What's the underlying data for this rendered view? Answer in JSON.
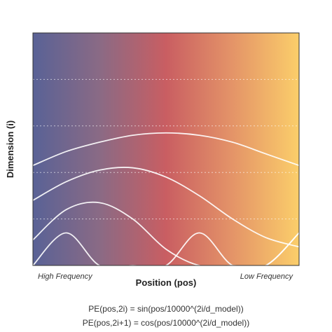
{
  "chart_data": {
    "type": "line",
    "title": "",
    "xlabel": "Position (pos)",
    "ylabel": "Dimension (i)",
    "xlim": [
      0,
      1
    ],
    "ylim": [
      0,
      1
    ],
    "grid": true,
    "background_gradient": [
      "#596296",
      "#8a6a85",
      "#c95e62",
      "#e49468",
      "#fbce6a"
    ],
    "line_color": "#ffffff",
    "annotations": {
      "left": "High Frequency",
      "right": "Low Frequency"
    },
    "series": [
      {
        "x": [
          0,
          0.125,
          0.25,
          0.375,
          0.5,
          0.625,
          0.75,
          0.875,
          1
        ],
        "y": [
          0,
          0.14,
          0.0,
          0,
          0,
          0.14,
          0.0,
          0,
          0.14
        ]
      },
      {
        "x": [
          0,
          0.125,
          0.25,
          0.375,
          0.5,
          0.625,
          0.75,
          0.875,
          1
        ],
        "y": [
          0.11,
          0.24,
          0.27,
          0.2,
          0.07,
          0,
          0,
          0,
          0.14
        ]
      },
      {
        "x": [
          0,
          0.125,
          0.25,
          0.375,
          0.5,
          0.625,
          0.75,
          0.875,
          1
        ],
        "y": [
          0.28,
          0.36,
          0.41,
          0.42,
          0.38,
          0.3,
          0.2,
          0.12,
          0.08
        ]
      },
      {
        "x": [
          0,
          0.125,
          0.25,
          0.375,
          0.5,
          0.625,
          0.75,
          0.875,
          1
        ],
        "y": [
          0.43,
          0.49,
          0.53,
          0.56,
          0.57,
          0.56,
          0.53,
          0.48,
          0.43
        ]
      }
    ]
  },
  "formulas": {
    "even": "PE(pos,2i) = sin(pos/10000^(2i/d_model))",
    "odd": "PE(pos,2i+1) = cos(pos/10000^(2i/d_model))"
  }
}
